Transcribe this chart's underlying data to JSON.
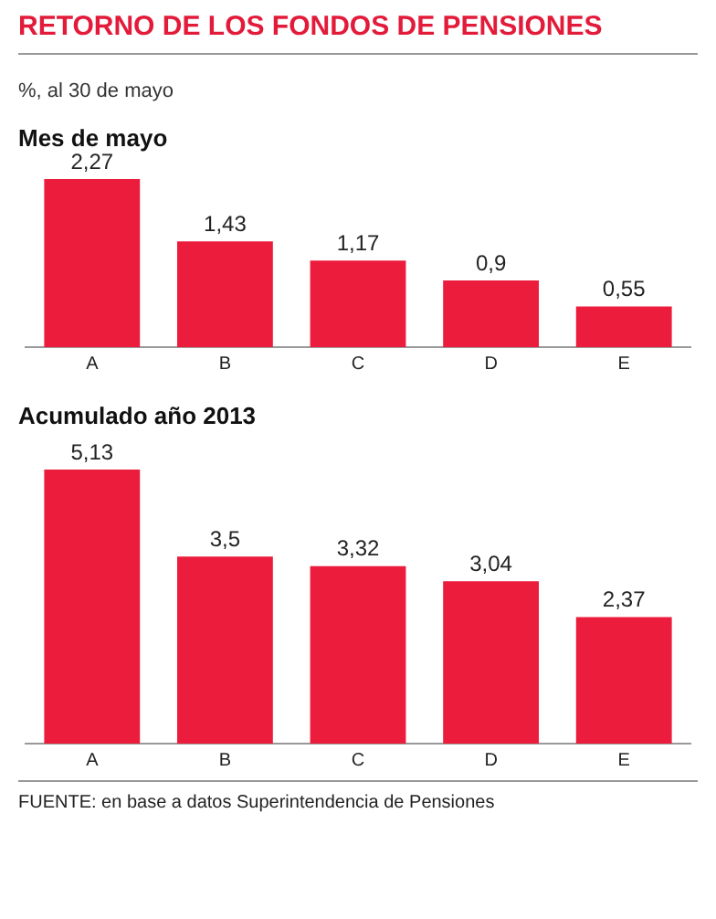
{
  "chart_data": [
    {
      "type": "other",
      "title": "RETORNO DE LOS FONDOS DE PENSIONES",
      "subtitle": "%, al 30 de mayo"
    },
    {
      "type": "bar",
      "title": "Mes de mayo",
      "categories": [
        "A",
        "B",
        "C",
        "D",
        "E"
      ],
      "values": [
        2.27,
        1.43,
        1.17,
        0.9,
        0.55
      ],
      "value_labels": [
        "2,27",
        "1,43",
        "1,17",
        "0,9",
        "0,55"
      ],
      "color": "#ec1c3c",
      "tick_labels": "x",
      "grid": false,
      "legend": false
    },
    {
      "type": "bar",
      "title": "Acumulado año 2013",
      "categories": [
        "A",
        "B",
        "C",
        "D",
        "E"
      ],
      "values": [
        5.13,
        3.5,
        3.32,
        3.04,
        2.37
      ],
      "value_labels": [
        "5,13",
        "3,5",
        "3,32",
        "3,04",
        "2,37"
      ],
      "color": "#ec1c3c",
      "tick_labels": "x",
      "grid": false,
      "legend": false,
      "annotations": [
        "FUENTE: en base a datos Superintendencia de Pensiones"
      ]
    }
  ]
}
